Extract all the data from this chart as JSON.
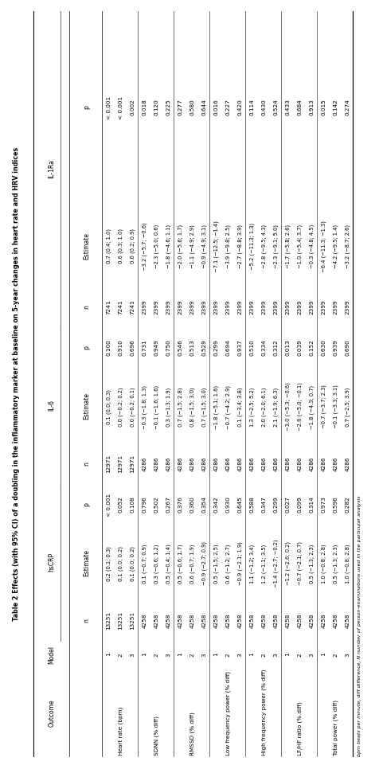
{
  "title": "Table 2 Effects (with 95% CI) of a doubling in the inflammatory marker at baseline on 5-year changes in heart rate and HRV indices",
  "footnote": "bpm beats per minute, diff difference, N number of person-examinations used in the particular analysis",
  "outcomes": [
    "Heart rate (bpm)",
    "SDNN (% diff)",
    "RMSSD (% diff)",
    "Low frequency power (% diff)",
    "High frequency power (% diff)",
    "LF/HF ratio (% diff)",
    "Total power (% diff)"
  ],
  "models": [
    1,
    2,
    3,
    1,
    2,
    3,
    1,
    2,
    3,
    1,
    2,
    3,
    1,
    2,
    3,
    1,
    2,
    3,
    1,
    2,
    3
  ],
  "hsCRP_n": [
    13251,
    13251,
    13251,
    4258,
    4258,
    4258,
    4258,
    4258,
    4258,
    4258,
    4258,
    4258,
    4258,
    4258,
    4258,
    4258,
    4258,
    4258,
    4258,
    4258,
    4258
  ],
  "hsCRP_estimate": [
    "0.2 (0.1; 0.3)",
    "0.1 (0.0; 0.2)",
    "0.1 (0.0; 0.2)",
    "0.1 (−0.7; 0.9)",
    "0.3 (−0.6; 1.2)",
    "0.5 (−0.4; 1.4)",
    "0.5 (−0.6; 1.7)",
    "0.6 (−0.7; 1.9)",
    "−0.9 (−2.7; 0.9)",
    "0.5 (−1.5; 2.5)",
    "0.6 (−1.2; 2.7)",
    "−0.9 (−2.1; 1.9)",
    "1.1 (−1.2; 3.4)",
    "1.2 (−1.1; 3.5)",
    "−1.4 (−2.7; −0.2)",
    "−1.2 (−2.6; 0.2)",
    "−0.7 (−2.1; 0.7)",
    "0.5 (−1.3; 2.3)",
    "1.0 (−0.8; 2.8)",
    "0.5 (−1.3; 2.3)",
    "1.0 (−0.8; 2.8)"
  ],
  "hsCRP_p": [
    "< 0.001",
    "0.052",
    "0.108",
    "0.796",
    "0.502",
    "0.267",
    "0.376",
    "0.360",
    "0.354",
    "0.342",
    "0.930",
    "0.645",
    "0.588",
    "0.347",
    "0.299",
    "0.027",
    "0.099",
    "0.314",
    "0.973",
    "0.596",
    "0.282"
  ],
  "IL6_n": [
    12971,
    12971,
    12971,
    4286,
    4286,
    4286,
    4286,
    4286,
    4286,
    4286,
    4286,
    4286,
    4286,
    4286,
    4286,
    4286,
    4286,
    4286,
    4286,
    4286,
    4286
  ],
  "IL6_estimate": [
    "0.1 (0.0; 0.3)",
    "0.0 (−0.2; 0.2)",
    "0.0 (−0.2; 0.1)",
    "−0.3 (−1.8; 1.3)",
    "−0.1 (−1.6; 1.6)",
    "0.3 (−1.3; 1.9)",
    "0.7 (−1.5; 2.8)",
    "0.8 (−1.5; 3.0)",
    "0.7 (−1.5; 3.0)",
    "−1.8 (−5.1; 1.6)",
    "−0.7 (−4.2; 2.9)",
    "0.1 (−3.4; 3.8)",
    "1.3 (−2.5; 5.2)",
    "2.0 (−2.0; 6.1)",
    "2.1 (−1.9; 6.3)",
    "−3.0 (−5.3; −0.6)",
    "−2.6 (−5.0; −0.1)",
    "−1.8 (−4.3; 0.7)",
    "−0.7 (−3.7; 2.3)",
    "−0.1 (−3.3; 3.1)",
    "0.7 (−2.5; 3.9)"
  ],
  "IL6_p": [
    "0.100",
    "0.910",
    "0.696",
    "0.731",
    "0.949",
    "0.750",
    "0.546",
    "0.513",
    "0.529",
    "0.299",
    "0.694",
    "0.937",
    "0.510",
    "0.334",
    "0.312",
    "0.013",
    "0.039",
    "0.152",
    "0.630",
    "0.939",
    "0.690"
  ],
  "IL1Ra_n": [
    7241,
    7241,
    7241,
    2399,
    2399,
    2399,
    2399,
    2399,
    2399,
    2399,
    2399,
    2399,
    2399,
    2399,
    2399,
    2399,
    2399,
    2399,
    2399,
    2399,
    2399
  ],
  "IL1Ra_estimate": [
    "0.7 (0.4; 1.0)",
    "0.6 (0.3; 1.0)",
    "0.6 (0.2; 0.9)",
    "−3.2 (−5.7; −0.6)",
    "−2.3 (−5.0; 0.6)",
    "−1.8 (−4.6; 1.1)",
    "−2.0 (−5.6; 1.7)",
    "−1.1 (−4.9; 2.9)",
    "−0.9 (−4.9; 3.1)",
    "−7.1 (−12.5; −1.4)",
    "−3.9 (−9.8; 2.5)",
    "−2.7 (−8.8; 3.9)",
    "−5.2 (−11.3; 1.3)",
    "−2.8 (−9.5; 4.3)",
    "−2.3 (−9.1; 5.0)",
    "−1.7 (−5.8; 2.6)",
    "−1.0 (−5.4; 3.7)",
    "−0.3 (−4.8; 4.5)",
    "−6.4 (−11.3; −1.3)",
    "−4.2 (−9.5; 1.4)",
    "−3.2 (−8.7; 2.6)"
  ],
  "IL1Ra_p": [
    "< 0.001",
    "< 0.001",
    "0.002",
    "0.018",
    "0.120",
    "0.225",
    "0.277",
    "0.580",
    "0.644",
    "0.016",
    "0.227",
    "0.420",
    "0.114",
    "0.430",
    "0.524",
    "0.433",
    "0.684",
    "0.913",
    "0.015",
    "0.142",
    "0.274"
  ]
}
